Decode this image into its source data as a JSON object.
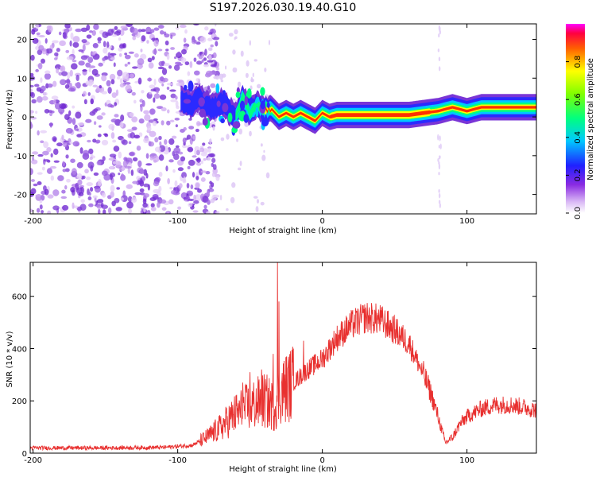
{
  "title": "S197.2026.030.19.40.G10",
  "chart_data": [
    {
      "type": "heatmap",
      "name": "spectrogram",
      "xlabel": "Height of straight line (km)",
      "ylabel": "Frequency (Hz)",
      "xlim": [
        -202,
        148
      ],
      "ylim": [
        -25,
        24
      ],
      "xticks": [
        -200,
        -100,
        0,
        100
      ],
      "yticks": [
        -20,
        -10,
        0,
        10,
        20
      ],
      "ridge": {
        "x": [
          -95,
          -90,
          -85,
          -80,
          -75,
          -70,
          -65,
          -60,
          -55,
          -50,
          -45,
          -40,
          -35,
          -30,
          -25,
          -20,
          -15,
          -10,
          -5,
          0,
          5,
          10,
          20,
          40,
          60,
          70,
          80,
          90,
          100,
          110,
          120,
          130,
          148
        ],
        "y": [
          4,
          3,
          5,
          3,
          2,
          4,
          2,
          0,
          5,
          1,
          3,
          2,
          2,
          0,
          1,
          0,
          1,
          0,
          -1,
          1,
          0,
          0.5,
          0.5,
          0.5,
          0.5,
          1,
          1.5,
          2.5,
          1.5,
          2.5,
          2.5,
          2.5,
          2.5
        ]
      },
      "colorbar": {
        "label": "Normalized spectral amplitude",
        "range": [
          0,
          1
        ],
        "ticks": [
          "0.0",
          "0.2",
          "0.4",
          "0.6",
          "0.8"
        ],
        "tick_values": [
          0,
          0.2,
          0.4,
          0.6,
          0.8
        ]
      }
    },
    {
      "type": "line",
      "name": "snr",
      "xlabel": "Height of straight line (km)",
      "ylabel": "SNR (10 * v/v)",
      "xlim": [
        -202,
        148
      ],
      "ylim": [
        0,
        730
      ],
      "xticks": [
        -200,
        -100,
        0,
        100
      ],
      "yticks": [
        0,
        200,
        400,
        600
      ],
      "color": "#e8302f",
      "envelope": {
        "x": [
          -202,
          -150,
          -110,
          -90,
          -80,
          -70,
          -60,
          -50,
          -40,
          -33,
          -30,
          -25,
          -20,
          -10,
          0,
          10,
          20,
          30,
          40,
          50,
          60,
          70,
          75,
          80,
          85,
          90,
          95,
          100,
          110,
          120,
          130,
          140,
          148
        ],
        "y": [
          20,
          20,
          22,
          30,
          60,
          100,
          150,
          180,
          200,
          180,
          230,
          250,
          270,
          320,
          360,
          440,
          490,
          520,
          510,
          470,
          420,
          300,
          230,
          140,
          40,
          60,
          110,
          140,
          170,
          185,
          185,
          175,
          165
        ]
      },
      "peaks": [
        {
          "x": -31,
          "y": 730
        },
        {
          "x": -30,
          "y": 580
        },
        {
          "x": -34,
          "y": 380
        },
        {
          "x": -42,
          "y": 320
        },
        {
          "x": -50,
          "y": 310
        },
        {
          "x": -55,
          "y": 270
        },
        {
          "x": -20,
          "y": 400
        },
        {
          "x": -13,
          "y": 430
        },
        {
          "x": -7,
          "y": 360
        }
      ]
    }
  ]
}
